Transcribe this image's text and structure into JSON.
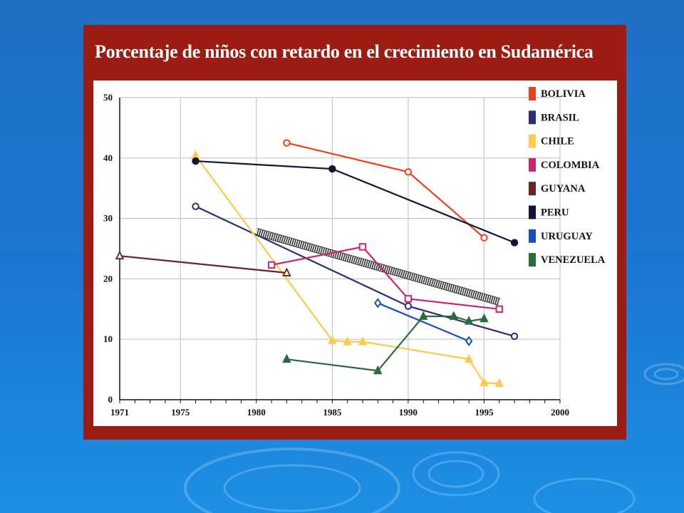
{
  "chart_data": {
    "type": "line",
    "title": "Porcentaje de niños con retardo en el crecimiento en Sudamérica",
    "xlabel": "",
    "ylabel": "",
    "xlim": [
      1971,
      2000
    ],
    "ylim": [
      0,
      50
    ],
    "x_ticks": [
      1971,
      1975,
      1980,
      1985,
      1990,
      1995,
      2000
    ],
    "y_ticks": [
      0,
      10,
      20,
      30,
      40,
      50
    ],
    "grid": true,
    "legend_position": "right",
    "series": [
      {
        "name": "BOLIVIA",
        "color": "#e8421f",
        "marker": "circle-open",
        "points": [
          [
            1982,
            42.5
          ],
          [
            1990,
            37.7
          ],
          [
            1995,
            26.8
          ]
        ]
      },
      {
        "name": "BRASIL",
        "color": "#2a2d7a",
        "marker": "circle-open",
        "points": [
          [
            1976,
            32
          ],
          [
            1990,
            15.5
          ],
          [
            1997,
            10.5
          ]
        ]
      },
      {
        "name": "CHILE",
        "color": "#ffc94a",
        "marker": "triangle-filled",
        "points": [
          [
            1976,
            40.4
          ],
          [
            1985,
            9.8
          ],
          [
            1986,
            9.6
          ],
          [
            1987,
            9.6
          ],
          [
            1994,
            6.7
          ],
          [
            1995,
            2.8
          ],
          [
            1996,
            2.7
          ]
        ]
      },
      {
        "name": "COLOMBIA",
        "color": "#c8276e",
        "marker": "square-open",
        "points": [
          [
            1981,
            22.3
          ],
          [
            1987,
            25.3
          ],
          [
            1990,
            16.7
          ],
          [
            1996,
            15
          ]
        ]
      },
      {
        "name": "GUYANA",
        "color": "#6b2222",
        "marker": "triangle-open",
        "points": [
          [
            1971,
            23.8
          ],
          [
            1982,
            21
          ]
        ]
      },
      {
        "name": "PERU",
        "color": "#121634",
        "marker": "circle-filled",
        "points": [
          [
            1976,
            39.5
          ],
          [
            1985,
            38.2
          ],
          [
            1997,
            26
          ]
        ]
      },
      {
        "name": "URUGUAY",
        "color": "#1b4fb8",
        "marker": "diamond-open",
        "points": [
          [
            1988,
            16
          ],
          [
            1994,
            9.7
          ]
        ]
      },
      {
        "name": "VENEZUELA",
        "color": "#2a6b3c",
        "marker": "triangle-filled",
        "points": [
          [
            1982,
            6.7
          ],
          [
            1988,
            4.8
          ],
          [
            1991,
            13.8
          ],
          [
            1993,
            13.8
          ],
          [
            1994,
            13
          ],
          [
            1995,
            13.4
          ]
        ]
      }
    ],
    "trend": {
      "color": "#333333",
      "points": [
        [
          1980,
          27.8
        ],
        [
          1996,
          16.2
        ]
      ]
    }
  }
}
